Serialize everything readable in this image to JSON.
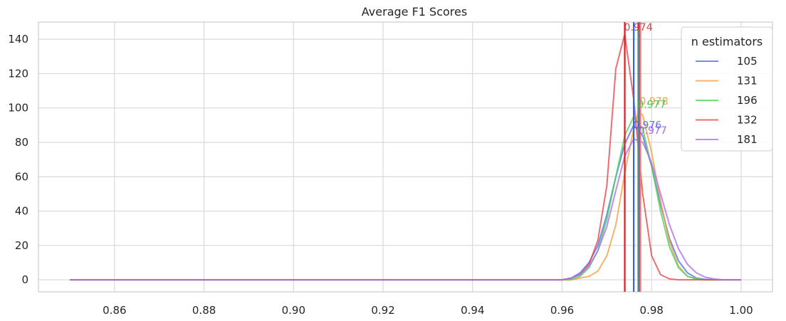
{
  "chart_data": {
    "type": "line",
    "title": "Average F1 Scores",
    "xlabel": "",
    "ylabel": "",
    "xlim": [
      0.843,
      1.007
    ],
    "ylim": [
      -7,
      150
    ],
    "xticks": [
      0.86,
      0.88,
      0.9,
      0.92,
      0.94,
      0.96,
      0.98,
      1.0
    ],
    "xtick_labels": [
      "0.86",
      "0.88",
      "0.90",
      "0.92",
      "0.94",
      "0.96",
      "0.98",
      "1.00"
    ],
    "yticks": [
      0,
      20,
      40,
      60,
      80,
      100,
      120,
      140
    ],
    "ytick_labels": [
      "0",
      "20",
      "40",
      "60",
      "80",
      "100",
      "120",
      "140"
    ],
    "grid": true,
    "legend": {
      "title": "n estimators",
      "placement": "top-right"
    },
    "series": [
      {
        "name": "105",
        "color": "#4c72f0",
        "mean": 0.976,
        "mean_label": "0.976",
        "x": [
          0.85,
          0.96,
          0.962,
          0.964,
          0.966,
          0.968,
          0.97,
          0.972,
          0.974,
          0.976,
          0.978,
          0.98,
          0.982,
          0.984,
          0.986,
          0.988,
          0.99,
          0.992,
          0.994,
          1.0
        ],
        "y": [
          0,
          0,
          1,
          4,
          10,
          20,
          38,
          60,
          79,
          90,
          84,
          66,
          44,
          24,
          11,
          4,
          1,
          0.3,
          0,
          0
        ]
      },
      {
        "name": "131",
        "color": "#f5a040",
        "mean": 0.978,
        "mean_label": "0.978",
        "x": [
          0.85,
          0.962,
          0.966,
          0.968,
          0.97,
          0.972,
          0.974,
          0.976,
          0.977,
          0.978,
          0.98,
          0.982,
          0.984,
          0.986,
          0.988,
          0.99,
          0.992,
          1.0
        ],
        "y": [
          0,
          0,
          2,
          5,
          14,
          32,
          62,
          88,
          97,
          96,
          74,
          46,
          22,
          8,
          2,
          0.5,
          0,
          0
        ]
      },
      {
        "name": "196",
        "color": "#4fd25a",
        "mean": 0.977,
        "mean_label": "0.977",
        "x": [
          0.85,
          0.962,
          0.964,
          0.966,
          0.968,
          0.97,
          0.972,
          0.974,
          0.976,
          0.978,
          0.98,
          0.982,
          0.984,
          0.986,
          0.988,
          0.99,
          0.992,
          1.0
        ],
        "y": [
          0,
          0,
          2,
          7,
          17,
          35,
          60,
          84,
          95,
          88,
          66,
          40,
          19,
          7,
          2,
          0.5,
          0,
          0
        ]
      },
      {
        "name": "132",
        "color": "#e8484e",
        "mean": 0.974,
        "mean_label": "0.974",
        "x": [
          0.85,
          0.96,
          0.962,
          0.964,
          0.966,
          0.968,
          0.97,
          0.972,
          0.974,
          0.976,
          0.978,
          0.98,
          0.982,
          0.984,
          0.986,
          1.0
        ],
        "y": [
          0,
          0,
          1,
          3,
          9,
          23,
          55,
          123,
          143,
          105,
          50,
          14,
          3,
          0.5,
          0,
          0
        ]
      },
      {
        "name": "181",
        "color": "#b070ea",
        "mean": 0.977,
        "mean_label": "0.977",
        "x": [
          0.85,
          0.96,
          0.962,
          0.964,
          0.966,
          0.968,
          0.97,
          0.972,
          0.974,
          0.976,
          0.978,
          0.98,
          0.982,
          0.984,
          0.986,
          0.988,
          0.99,
          0.992,
          0.994,
          0.996,
          1.0
        ],
        "y": [
          0,
          0,
          1,
          3,
          8,
          17,
          31,
          52,
          72,
          82,
          80,
          68,
          50,
          32,
          18,
          9,
          4,
          1.5,
          0.5,
          0,
          0
        ]
      }
    ],
    "mean_lines": [
      {
        "series": "105",
        "x": 0.976,
        "color": "#3a5fe8",
        "label": "0.976",
        "label_y": 88
      },
      {
        "series": "131",
        "x": 0.9775,
        "color": "#f0901e",
        "label": "0.978",
        "label_y": 102
      },
      {
        "series": "196",
        "x": 0.977,
        "color": "#33c040",
        "label": "0.977",
        "label_y": 100
      },
      {
        "series": "132",
        "x": 0.974,
        "color": "#e31a1c",
        "label": "0.974",
        "label_y": 145
      },
      {
        "series": "181",
        "x": 0.9772,
        "color": "#9a4be0",
        "label": "0.977",
        "label_y": 85
      }
    ]
  }
}
